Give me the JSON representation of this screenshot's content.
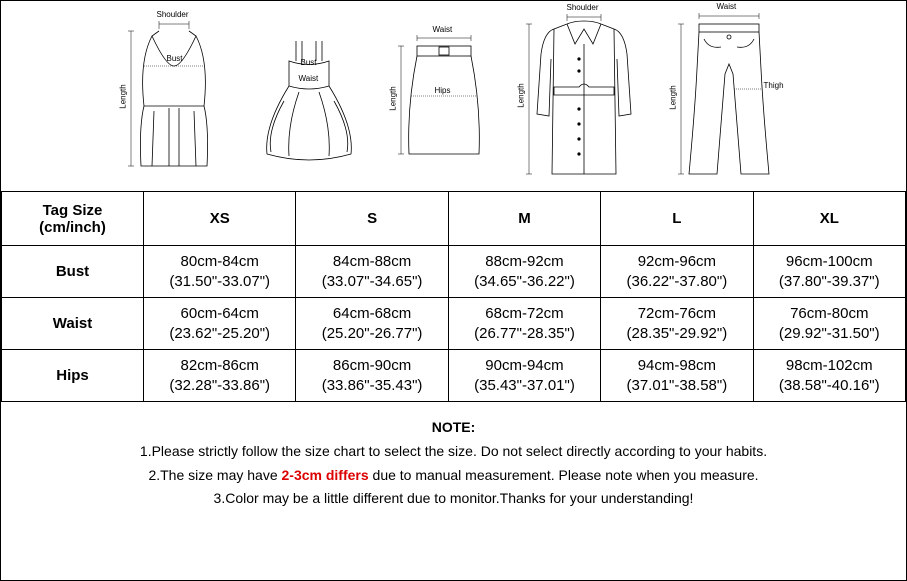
{
  "diagrams": {
    "labels": {
      "shoulder": "Shoulder",
      "bust": "Bust",
      "waist": "Waist",
      "length": "Length",
      "hips": "Hips",
      "thigh": "Thigh"
    }
  },
  "table": {
    "header_label_line1": "Tag Size",
    "header_label_line2": "(cm/inch)",
    "sizes": [
      "XS",
      "S",
      "M",
      "L",
      "XL"
    ],
    "rows": [
      {
        "name": "Bust",
        "cells": [
          {
            "cm": "80cm-84cm",
            "in": "(31.50\"-33.07\")"
          },
          {
            "cm": "84cm-88cm",
            "in": "(33.07\"-34.65\")"
          },
          {
            "cm": "88cm-92cm",
            "in": "(34.65\"-36.22\")"
          },
          {
            "cm": "92cm-96cm",
            "in": "(36.22\"-37.80\")"
          },
          {
            "cm": "96cm-100cm",
            "in": "(37.80\"-39.37\")"
          }
        ]
      },
      {
        "name": "Waist",
        "cells": [
          {
            "cm": "60cm-64cm",
            "in": "(23.62\"-25.20\")"
          },
          {
            "cm": "64cm-68cm",
            "in": "(25.20\"-26.77\")"
          },
          {
            "cm": "68cm-72cm",
            "in": "(26.77\"-28.35\")"
          },
          {
            "cm": "72cm-76cm",
            "in": "(28.35\"-29.92\")"
          },
          {
            "cm": "76cm-80cm",
            "in": "(29.92\"-31.50\")"
          }
        ]
      },
      {
        "name": "Hips",
        "cells": [
          {
            "cm": "82cm-86cm",
            "in": "(32.28\"-33.86\")"
          },
          {
            "cm": "86cm-90cm",
            "in": "(33.86\"-35.43\")"
          },
          {
            "cm": "90cm-94cm",
            "in": "(35.43\"-37.01\")"
          },
          {
            "cm": "94cm-98cm",
            "in": "(37.01\"-38.58\")"
          },
          {
            "cm": "98cm-102cm",
            "in": "(38.58\"-40.16\")"
          }
        ]
      }
    ]
  },
  "notes": {
    "title": "NOTE:",
    "line1": "1.Please strictly follow the size chart to select the size. Do not select directly according to your habits.",
    "line2_pre": "2.The size may have ",
    "line2_hl": "2-3cm differs",
    "line2_post": " due to manual measurement. Please note when you measure.",
    "line3": "3.Color may be a little different due to monitor.Thanks for your understanding!"
  },
  "style": {
    "stroke": "#000000",
    "highlight_color": "#dd0000",
    "font_size_table": 15,
    "font_size_notes": 14,
    "font_size_diagram_label": 8
  }
}
